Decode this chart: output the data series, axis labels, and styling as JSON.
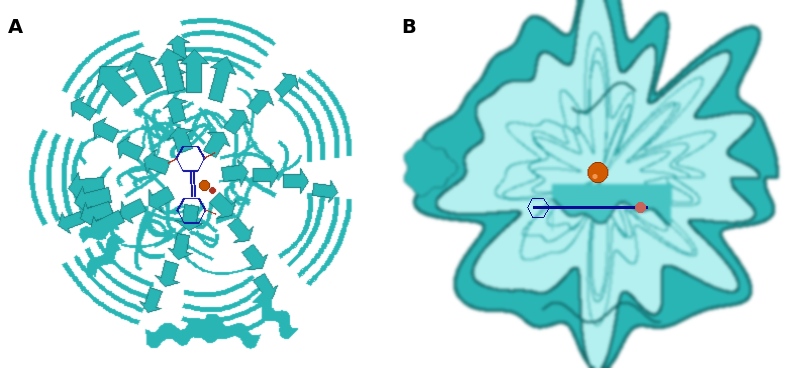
{
  "background_color": "#ffffff",
  "label_A": "A",
  "label_B": "B",
  "label_fontsize": 14,
  "label_fontweight": "bold",
  "teal_r": 42,
  "teal_g": 181,
  "teal_b": 181,
  "teal_light_r": 160,
  "teal_light_g": 240,
  "teal_light_b": 240,
  "teal_dark_r": 20,
  "teal_dark_g": 110,
  "teal_dark_b": 110,
  "blue_r": 20,
  "blue_g": 20,
  "blue_b": 160,
  "orange_r": 204,
  "orange_g": 85,
  "orange_b": 0,
  "red_r": 180,
  "red_g": 60,
  "red_b": 40,
  "figw": 7.94,
  "figh": 3.68,
  "dpi": 100
}
